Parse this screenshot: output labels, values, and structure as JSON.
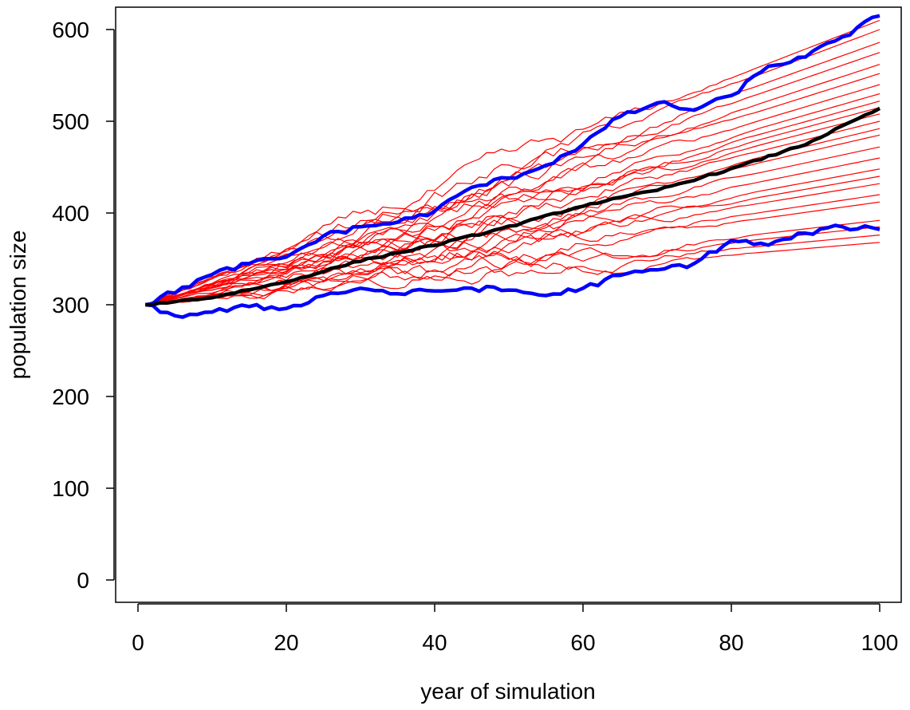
{
  "chart_data": {
    "type": "line",
    "title": "",
    "xlabel": "year of simulation",
    "ylabel": "population size",
    "xlim": [
      1,
      100
    ],
    "ylim": [
      0,
      600
    ],
    "xticks": [
      0,
      20,
      40,
      60,
      80,
      100
    ],
    "yticks": [
      0,
      100,
      200,
      300,
      400,
      500,
      600
    ],
    "grid": false,
    "legend": "none",
    "colors": {
      "replicates": "#ff0000",
      "bounds": "#0000ff",
      "mean": "#000000"
    },
    "replicate_count": 25,
    "replicate_start": 300,
    "replicate_end_values": [
      368,
      376,
      385,
      392,
      412,
      420,
      432,
      440,
      448,
      460,
      472,
      485,
      492,
      500,
      508,
      515,
      522,
      530,
      540,
      552,
      562,
      575,
      586,
      600,
      610
    ],
    "mean_line": {
      "x": [
        1,
        10,
        20,
        30,
        40,
        50,
        60,
        70,
        80,
        90,
        100
      ],
      "y": [
        300,
        308,
        325,
        348,
        365,
        385,
        408,
        425,
        448,
        475,
        514
      ]
    },
    "upper_bound": {
      "x": [
        1,
        10,
        15,
        20,
        25,
        30,
        35,
        40,
        45,
        50,
        55,
        60,
        65,
        70,
        75,
        80,
        85,
        90,
        95,
        100
      ],
      "y": [
        300,
        333,
        345,
        352,
        375,
        385,
        390,
        402,
        428,
        438,
        452,
        475,
        505,
        520,
        512,
        528,
        560,
        570,
        592,
        615
      ]
    },
    "lower_bound": {
      "x": [
        1,
        5,
        10,
        15,
        20,
        25,
        30,
        35,
        40,
        45,
        50,
        55,
        60,
        65,
        70,
        75,
        80,
        85,
        90,
        95,
        100
      ],
      "y": [
        300,
        288,
        292,
        298,
        296,
        310,
        318,
        312,
        315,
        318,
        316,
        310,
        318,
        332,
        338,
        345,
        370,
        365,
        378,
        385,
        382
      ]
    }
  }
}
